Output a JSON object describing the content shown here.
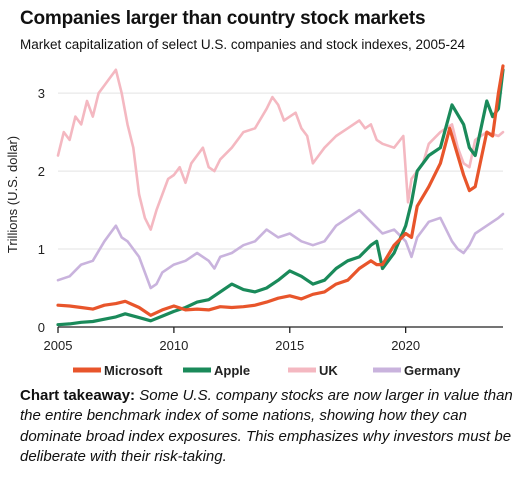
{
  "header": {
    "title": "Companies larger than country stock markets",
    "subtitle": "Market capitalization of select U.S. companies and stock indexes, 2005-24"
  },
  "takeaway": {
    "lead": "Chart takeaway:",
    "body": "Some U.S. company stocks are now larger in value than the entire benchmark index of some nations, showing how they can dominate broad index exposures. This emphasizes why investors must be deliberate with their risk-taking."
  },
  "chart_data": {
    "type": "line",
    "title": "Companies larger than country stock markets",
    "subtitle": "Market capitalization of select U.S. companies and stock indexes, 2005-24",
    "xlabel": "",
    "ylabel": "Trillions (U.S. dollar)",
    "xlim": [
      2005,
      2024.2
    ],
    "ylim": [
      0,
      3.4
    ],
    "xticks": [
      2005,
      2010,
      2015,
      2020
    ],
    "yticks": [
      0,
      1,
      2,
      3
    ],
    "grid": "horizontal",
    "legend_position": "bottom",
    "series": [
      {
        "name": "UK",
        "color": "#f4b8c1",
        "x": [
          2005,
          2005.25,
          2005.5,
          2005.75,
          2006,
          2006.25,
          2006.5,
          2006.75,
          2007,
          2007.25,
          2007.5,
          2007.75,
          2008,
          2008.25,
          2008.5,
          2008.75,
          2009,
          2009.25,
          2009.5,
          2009.75,
          2010,
          2010.25,
          2010.5,
          2010.75,
          2011,
          2011.25,
          2011.5,
          2011.75,
          2012,
          2012.5,
          2013,
          2013.5,
          2014,
          2014.25,
          2014.5,
          2014.75,
          2015,
          2015.25,
          2015.5,
          2015.75,
          2016,
          2016.25,
          2016.5,
          2017,
          2017.5,
          2018,
          2018.25,
          2018.5,
          2018.75,
          2019,
          2019.5,
          2019.9,
          2020.1,
          2020.25,
          2020.5,
          2020.75,
          2021,
          2021.5,
          2022,
          2022.25,
          2022.5,
          2022.75,
          2023,
          2023.5,
          2024,
          2024.2
        ],
        "values": [
          2.2,
          2.5,
          2.4,
          2.7,
          2.6,
          2.9,
          2.7,
          3.0,
          3.1,
          3.2,
          3.3,
          3.0,
          2.6,
          2.3,
          1.7,
          1.4,
          1.25,
          1.5,
          1.7,
          1.9,
          1.95,
          2.05,
          1.85,
          2.1,
          2.2,
          2.3,
          2.05,
          2.0,
          2.15,
          2.3,
          2.5,
          2.55,
          2.8,
          2.95,
          2.85,
          2.65,
          2.7,
          2.75,
          2.55,
          2.45,
          2.1,
          2.2,
          2.3,
          2.45,
          2.55,
          2.65,
          2.55,
          2.6,
          2.4,
          2.35,
          2.3,
          2.45,
          1.6,
          1.9,
          2.0,
          2.1,
          2.35,
          2.5,
          2.6,
          2.3,
          2.1,
          2.05,
          2.4,
          2.5,
          2.45,
          2.5
        ]
      },
      {
        "name": "Germany",
        "color": "#c9b3dd",
        "x": [
          2005,
          2005.5,
          2006,
          2006.5,
          2007,
          2007.25,
          2007.5,
          2007.75,
          2008,
          2008.5,
          2009,
          2009.25,
          2009.5,
          2010,
          2010.5,
          2011,
          2011.5,
          2011.75,
          2012,
          2012.5,
          2013,
          2013.5,
          2014,
          2014.5,
          2015,
          2015.5,
          2016,
          2016.5,
          2017,
          2017.5,
          2018,
          2018.5,
          2019,
          2019.5,
          2020,
          2020.25,
          2020.5,
          2021,
          2021.5,
          2022,
          2022.25,
          2022.5,
          2022.75,
          2023,
          2023.5,
          2024,
          2024.2
        ],
        "values": [
          0.6,
          0.65,
          0.8,
          0.85,
          1.1,
          1.2,
          1.3,
          1.15,
          1.1,
          0.9,
          0.5,
          0.55,
          0.7,
          0.8,
          0.85,
          0.95,
          0.85,
          0.75,
          0.9,
          0.95,
          1.05,
          1.1,
          1.25,
          1.15,
          1.2,
          1.1,
          1.05,
          1.1,
          1.3,
          1.4,
          1.5,
          1.35,
          1.2,
          1.25,
          1.1,
          0.9,
          1.15,
          1.35,
          1.4,
          1.1,
          1.0,
          0.95,
          1.05,
          1.2,
          1.3,
          1.4,
          1.45
        ]
      },
      {
        "name": "Apple",
        "color": "#1a8a5a",
        "x": [
          2005,
          2005.5,
          2006,
          2006.5,
          2007,
          2007.5,
          2007.9,
          2008.5,
          2009,
          2009.5,
          2010,
          2010.5,
          2011,
          2011.5,
          2012,
          2012.5,
          2013,
          2013.5,
          2014,
          2014.5,
          2015,
          2015.5,
          2016,
          2016.5,
          2017,
          2017.5,
          2018,
          2018.5,
          2018.75,
          2019,
          2019.5,
          2020,
          2020.25,
          2020.5,
          2020.75,
          2021,
          2021.5,
          2022,
          2022.5,
          2022.75,
          2023,
          2023.5,
          2023.75,
          2024,
          2024.2
        ],
        "values": [
          0.03,
          0.04,
          0.06,
          0.07,
          0.1,
          0.13,
          0.17,
          0.12,
          0.08,
          0.14,
          0.2,
          0.25,
          0.32,
          0.35,
          0.45,
          0.55,
          0.48,
          0.45,
          0.5,
          0.6,
          0.72,
          0.65,
          0.55,
          0.6,
          0.75,
          0.85,
          0.9,
          1.05,
          1.1,
          0.75,
          0.95,
          1.3,
          1.6,
          2.0,
          2.1,
          2.2,
          2.3,
          2.85,
          2.6,
          2.3,
          2.2,
          2.9,
          2.7,
          2.8,
          3.3
        ]
      },
      {
        "name": "Microsoft",
        "color": "#e8552b",
        "x": [
          2005,
          2005.5,
          2006,
          2006.5,
          2007,
          2007.5,
          2007.9,
          2008.5,
          2009,
          2009.5,
          2010,
          2010.5,
          2011,
          2011.5,
          2012,
          2012.5,
          2013,
          2013.5,
          2014,
          2014.5,
          2015,
          2015.5,
          2016,
          2016.5,
          2017,
          2017.5,
          2018,
          2018.5,
          2018.75,
          2019,
          2019.5,
          2020,
          2020.25,
          2020.5,
          2021,
          2021.5,
          2021.9,
          2022.25,
          2022.5,
          2022.75,
          2023,
          2023.5,
          2023.75,
          2024,
          2024.2
        ],
        "values": [
          0.28,
          0.27,
          0.25,
          0.23,
          0.28,
          0.3,
          0.33,
          0.25,
          0.15,
          0.22,
          0.27,
          0.22,
          0.23,
          0.22,
          0.26,
          0.25,
          0.26,
          0.28,
          0.32,
          0.37,
          0.4,
          0.36,
          0.42,
          0.45,
          0.55,
          0.6,
          0.75,
          0.85,
          0.8,
          0.8,
          1.05,
          1.2,
          1.15,
          1.55,
          1.8,
          2.1,
          2.55,
          2.2,
          1.95,
          1.75,
          1.8,
          2.5,
          2.45,
          3.0,
          3.35
        ]
      }
    ]
  }
}
